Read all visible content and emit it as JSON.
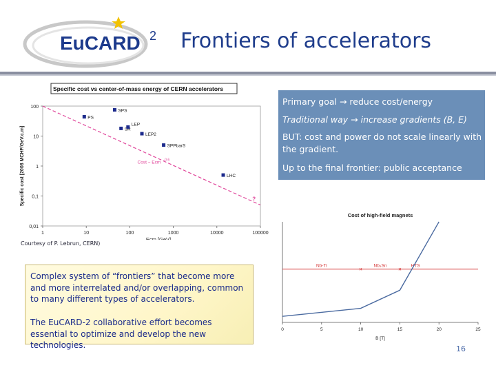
{
  "slide": {
    "title": "Frontiers of accelerators",
    "logo_text": "EuCARD",
    "logo_superscript": "2",
    "courtesy": "Courtesy of P. Lebrun, CERN)",
    "page_number": "16"
  },
  "goals": [
    "Primary goal → reduce cost/energy",
    "Traditional way → increase gradients (B, E)",
    "BUT: cost and power do not scale linearly with the gradient.",
    "Up to the final frontier: public acceptance"
  ],
  "complex_box": {
    "para1": "Complex system of “frontiers” that become more and more interrelated and/or overlapping, common to many different types of accelerators.",
    "para2": "The EuCARD-2 collaborative effort becomes essential to optimize and develop the new technologies."
  },
  "colors": {
    "title": "#1f3d8c",
    "goals_box": "#6b8fb8",
    "point": "#1c2a8c",
    "trend": "#e0459a",
    "magnet_curve": "#4a6aa0",
    "magnet_regions": "#d33030"
  },
  "chart_data": [
    {
      "type": "scatter",
      "title": "Specific cost vs center-of-mass energy of CERN accelerators",
      "xlabel": "Ecm [GeV]",
      "ylabel": "Specific cost [2008 MCHF/GeV.c.m]",
      "x_scale": "log",
      "y_scale": "log",
      "xlim": [
        1,
        100000
      ],
      "ylim": [
        0.01,
        100
      ],
      "x_ticks": [
        "1",
        "10",
        "100",
        "1000",
        "10000",
        "100000"
      ],
      "y_ticks": [
        "0,01",
        "0,1",
        "1",
        "10",
        "100"
      ],
      "points": [
        {
          "label": "PS",
          "x": 9,
          "y": 44
        },
        {
          "label": "SPS",
          "x": 45,
          "y": 75
        },
        {
          "label": "SR",
          "x": 63,
          "y": 18
        },
        {
          "label": "LEP",
          "x": 91,
          "y": 20
        },
        {
          "label": "LEP2",
          "x": 190,
          "y": 12
        },
        {
          "label": "SPPbarS",
          "x": 600,
          "y": 5
        },
        {
          "label": "LHC",
          "x": 14000,
          "y": 0.5
        },
        {
          "label": "?",
          "x": 70000,
          "y": 0.08
        }
      ],
      "trend_label": "Cost ~ Ecm",
      "trend_exponent": "-0.6",
      "trend_line": {
        "x": [
          1,
          100000
        ],
        "y": [
          100,
          0.05
        ]
      }
    },
    {
      "type": "line",
      "title": "Cost of high-field magnets",
      "xlabel": "B [T]",
      "xlim": [
        0,
        25
      ],
      "x_ticks": [
        "0",
        "5",
        "10",
        "15",
        "20",
        "25"
      ],
      "ylim": [
        0,
        100
      ],
      "series": [
        {
          "values_x": [
            0,
            10,
            15,
            20
          ],
          "values_y": [
            6,
            14,
            32,
            100
          ]
        }
      ],
      "regions": [
        {
          "label": "Nb-Ti",
          "from": 0,
          "to": 10
        },
        {
          "label": "Nb₃Sn",
          "from": 10,
          "to": 15
        },
        {
          "label": "HTS",
          "from": 15,
          "to": 25
        }
      ],
      "threshold_y": 53
    }
  ]
}
